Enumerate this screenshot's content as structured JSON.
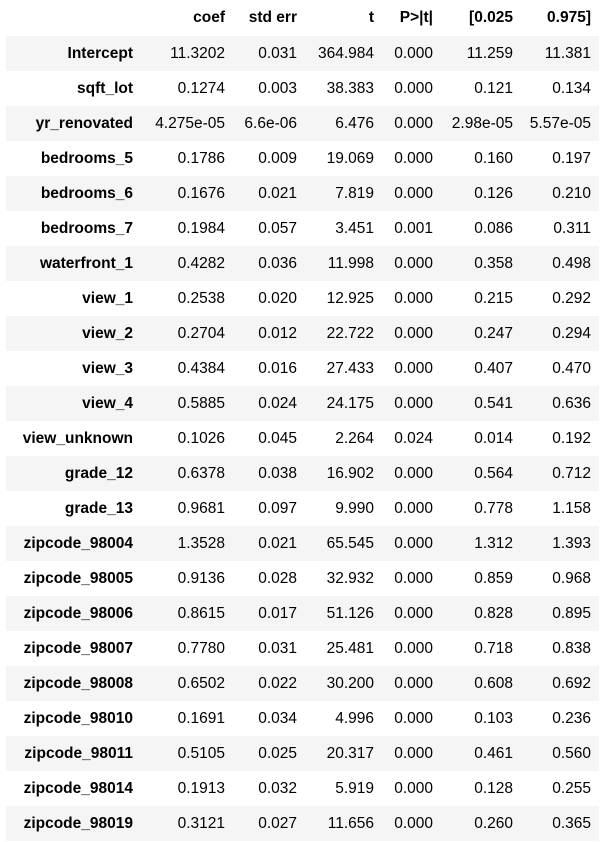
{
  "table": {
    "headers": [
      "",
      "coef",
      "std err",
      "t",
      "P>|t|",
      "[0.025",
      "0.975]"
    ],
    "rows": [
      {
        "label": "Intercept",
        "values": [
          "11.3202",
          "0.031",
          "364.984",
          "0.000",
          "11.259",
          "11.381"
        ]
      },
      {
        "label": "sqft_lot",
        "values": [
          "0.1274",
          "0.003",
          "38.383",
          "0.000",
          "0.121",
          "0.134"
        ]
      },
      {
        "label": "yr_renovated",
        "values": [
          "4.275e-05",
          "6.6e-06",
          "6.476",
          "0.000",
          "2.98e-05",
          "5.57e-05"
        ]
      },
      {
        "label": "bedrooms_5",
        "values": [
          "0.1786",
          "0.009",
          "19.069",
          "0.000",
          "0.160",
          "0.197"
        ]
      },
      {
        "label": "bedrooms_6",
        "values": [
          "0.1676",
          "0.021",
          "7.819",
          "0.000",
          "0.126",
          "0.210"
        ]
      },
      {
        "label": "bedrooms_7",
        "values": [
          "0.1984",
          "0.057",
          "3.451",
          "0.001",
          "0.086",
          "0.311"
        ]
      },
      {
        "label": "waterfront_1",
        "values": [
          "0.4282",
          "0.036",
          "11.998",
          "0.000",
          "0.358",
          "0.498"
        ]
      },
      {
        "label": "view_1",
        "values": [
          "0.2538",
          "0.020",
          "12.925",
          "0.000",
          "0.215",
          "0.292"
        ]
      },
      {
        "label": "view_2",
        "values": [
          "0.2704",
          "0.012",
          "22.722",
          "0.000",
          "0.247",
          "0.294"
        ]
      },
      {
        "label": "view_3",
        "values": [
          "0.4384",
          "0.016",
          "27.433",
          "0.000",
          "0.407",
          "0.470"
        ]
      },
      {
        "label": "view_4",
        "values": [
          "0.5885",
          "0.024",
          "24.175",
          "0.000",
          "0.541",
          "0.636"
        ]
      },
      {
        "label": "view_unknown",
        "values": [
          "0.1026",
          "0.045",
          "2.264",
          "0.024",
          "0.014",
          "0.192"
        ]
      },
      {
        "label": "grade_12",
        "values": [
          "0.6378",
          "0.038",
          "16.902",
          "0.000",
          "0.564",
          "0.712"
        ]
      },
      {
        "label": "grade_13",
        "values": [
          "0.9681",
          "0.097",
          "9.990",
          "0.000",
          "0.778",
          "1.158"
        ]
      },
      {
        "label": "zipcode_98004",
        "values": [
          "1.3528",
          "0.021",
          "65.545",
          "0.000",
          "1.312",
          "1.393"
        ]
      },
      {
        "label": "zipcode_98005",
        "values": [
          "0.9136",
          "0.028",
          "32.932",
          "0.000",
          "0.859",
          "0.968"
        ]
      },
      {
        "label": "zipcode_98006",
        "values": [
          "0.8615",
          "0.017",
          "51.126",
          "0.000",
          "0.828",
          "0.895"
        ]
      },
      {
        "label": "zipcode_98007",
        "values": [
          "0.7780",
          "0.031",
          "25.481",
          "0.000",
          "0.718",
          "0.838"
        ]
      },
      {
        "label": "zipcode_98008",
        "values": [
          "0.6502",
          "0.022",
          "30.200",
          "0.000",
          "0.608",
          "0.692"
        ]
      },
      {
        "label": "zipcode_98010",
        "values": [
          "0.1691",
          "0.034",
          "4.996",
          "0.000",
          "0.103",
          "0.236"
        ]
      },
      {
        "label": "zipcode_98011",
        "values": [
          "0.5105",
          "0.025",
          "20.317",
          "0.000",
          "0.461",
          "0.560"
        ]
      },
      {
        "label": "zipcode_98014",
        "values": [
          "0.1913",
          "0.032",
          "5.919",
          "0.000",
          "0.128",
          "0.255"
        ]
      },
      {
        "label": "zipcode_98019",
        "values": [
          "0.3121",
          "0.027",
          "11.656",
          "0.000",
          "0.260",
          "0.365"
        ]
      }
    ]
  }
}
